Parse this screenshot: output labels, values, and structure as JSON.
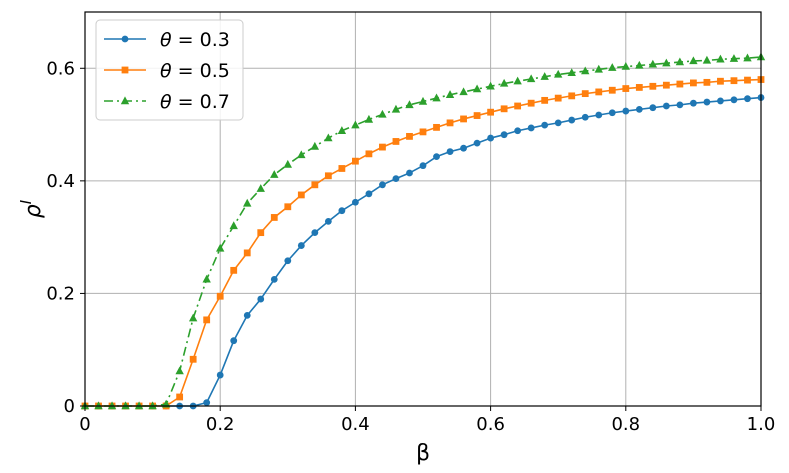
{
  "chart_data": {
    "type": "line",
    "xlabel": "β",
    "ylabel": "ρ",
    "ylabel_sup": "I",
    "xlim": [
      0,
      1.0
    ],
    "ylim": [
      0,
      0.7
    ],
    "xticks": [
      "0",
      "0.2",
      "0.4",
      "0.6",
      "0.8",
      "1.0"
    ],
    "xtick_values": [
      0,
      0.2,
      0.4,
      0.6,
      0.8,
      1.0
    ],
    "yticks": [
      "0",
      "0.2",
      "0.4",
      "0.6"
    ],
    "ytick_values": [
      0,
      0.2,
      0.4,
      0.6
    ],
    "grid": true,
    "legend_position": "top-left",
    "x": [
      0.0,
      0.02,
      0.04,
      0.06,
      0.08,
      0.1,
      0.12,
      0.14,
      0.16,
      0.18,
      0.2,
      0.22,
      0.24,
      0.26,
      0.28,
      0.3,
      0.32,
      0.34,
      0.36,
      0.38,
      0.4,
      0.42,
      0.44,
      0.46,
      0.48,
      0.5,
      0.52,
      0.54,
      0.56,
      0.58,
      0.6,
      0.62,
      0.64,
      0.66,
      0.68,
      0.7,
      0.72,
      0.74,
      0.76,
      0.78,
      0.8,
      0.82,
      0.84,
      0.86,
      0.88,
      0.9,
      0.92,
      0.94,
      0.96,
      0.98,
      1.0
    ],
    "series": [
      {
        "name": "θ = 0.3",
        "legend_theta": "θ",
        "legend_value": "= 0.3",
        "color": "#1f77b4",
        "marker": "circle",
        "linestyle": "solid",
        "values": [
          0,
          0,
          0,
          0,
          0,
          0,
          0,
          0,
          0,
          0.006,
          0.055,
          0.116,
          0.161,
          0.19,
          0.225,
          0.258,
          0.285,
          0.308,
          0.328,
          0.347,
          0.362,
          0.377,
          0.393,
          0.404,
          0.414,
          0.427,
          0.443,
          0.452,
          0.458,
          0.467,
          0.476,
          0.482,
          0.489,
          0.494,
          0.499,
          0.503,
          0.508,
          0.513,
          0.517,
          0.521,
          0.524,
          0.527,
          0.53,
          0.533,
          0.535,
          0.538,
          0.54,
          0.542,
          0.544,
          0.546,
          0.548
        ]
      },
      {
        "name": "θ = 0.5",
        "legend_theta": "θ",
        "legend_value": "= 0.5",
        "color": "#ff7f0e",
        "marker": "square",
        "linestyle": "solid",
        "values": [
          0,
          0,
          0,
          0,
          0,
          0,
          0,
          0.016,
          0.083,
          0.153,
          0.195,
          0.241,
          0.272,
          0.308,
          0.335,
          0.354,
          0.375,
          0.393,
          0.409,
          0.422,
          0.435,
          0.448,
          0.46,
          0.47,
          0.479,
          0.487,
          0.495,
          0.503,
          0.51,
          0.516,
          0.522,
          0.528,
          0.533,
          0.538,
          0.543,
          0.547,
          0.551,
          0.555,
          0.558,
          0.561,
          0.564,
          0.566,
          0.568,
          0.57,
          0.572,
          0.574,
          0.575,
          0.577,
          0.578,
          0.579,
          0.58
        ]
      },
      {
        "name": "θ = 0.7",
        "legend_theta": "θ",
        "legend_value": "= 0.7",
        "color": "#2ca02c",
        "marker": "triangle",
        "linestyle": "dashdot",
        "values": [
          0,
          0,
          0,
          0,
          0,
          0,
          0.003,
          0.062,
          0.156,
          0.225,
          0.28,
          0.32,
          0.36,
          0.386,
          0.411,
          0.429,
          0.446,
          0.461,
          0.476,
          0.489,
          0.499,
          0.509,
          0.518,
          0.527,
          0.535,
          0.541,
          0.547,
          0.553,
          0.558,
          0.563,
          0.568,
          0.573,
          0.577,
          0.581,
          0.585,
          0.589,
          0.592,
          0.595,
          0.598,
          0.601,
          0.603,
          0.605,
          0.607,
          0.609,
          0.611,
          0.613,
          0.614,
          0.616,
          0.617,
          0.618,
          0.62
        ]
      }
    ]
  }
}
